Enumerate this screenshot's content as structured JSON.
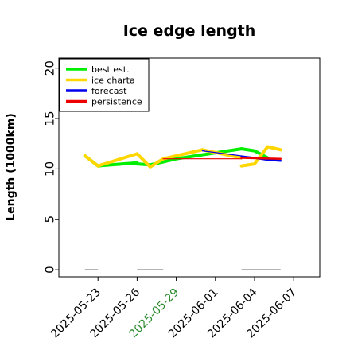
{
  "chart_data": {
    "type": "line",
    "title": "Ice edge length",
    "xlabel": "",
    "ylabel": "Length (1000km)",
    "ylim": [
      -0.7,
      21
    ],
    "xlim": [
      "2025-05-20",
      "2025-06-09"
    ],
    "yticks": [
      "0",
      "5",
      "10",
      "15",
      "20"
    ],
    "xticks": [
      {
        "date": "2025-05-23",
        "label": "2025-05-23",
        "color": "#000000"
      },
      {
        "date": "2025-05-26",
        "label": "2025-05-26",
        "color": "#000000"
      },
      {
        "date": "2025-05-29",
        "label": "2025-05-29",
        "color": "#2e8b2e"
      },
      {
        "date": "2025-06-01",
        "label": "2025-06-01",
        "color": "#000000"
      },
      {
        "date": "2025-06-04",
        "label": "2025-06-04",
        "color": "#000000"
      },
      {
        "date": "2025-06-07",
        "label": "2025-06-07",
        "color": "#000000"
      }
    ],
    "legend_position": "top-left",
    "series": [
      {
        "name": "best est.",
        "color": "#00ee00",
        "segments": [
          {
            "x": [
              "2025-05-22",
              "2025-05-23"
            ],
            "y": [
              11.3,
              10.3
            ]
          },
          {
            "x": [
              "2025-05-23",
              "2025-05-26"
            ],
            "y": [
              10.3,
              10.6
            ]
          },
          {
            "x": [
              "2025-05-26",
              "2025-05-27",
              "2025-05-28",
              "2025-05-29"
            ],
            "y": [
              10.5,
              10.4,
              10.7,
              11.0
            ]
          },
          {
            "x": [
              "2025-05-29",
              "2025-06-03"
            ],
            "y": [
              11.0,
              12.0
            ]
          },
          {
            "x": [
              "2025-06-03",
              "2025-06-04",
              "2025-06-05"
            ],
            "y": [
              12.0,
              11.8,
              11.1
            ]
          }
        ]
      },
      {
        "name": "ice charta",
        "color": "#ffd700",
        "segments": [
          {
            "x": [
              "2025-05-22",
              "2025-05-23"
            ],
            "y": [
              11.3,
              10.3
            ]
          },
          {
            "x": [
              "2025-05-23",
              "2025-05-26"
            ],
            "y": [
              10.3,
              11.5
            ]
          },
          {
            "x": [
              "2025-05-26",
              "2025-05-27",
              "2025-05-28"
            ],
            "y": [
              11.5,
              10.2,
              11.0
            ]
          },
          {
            "x": [
              "2025-05-28",
              "2025-05-31"
            ],
            "y": [
              11.0,
              11.9
            ]
          },
          {
            "x": [
              "2025-05-31",
              "2025-06-03"
            ],
            "y": [
              11.9,
              11.1
            ]
          },
          {
            "x": [
              "2025-06-03",
              "2025-06-04",
              "2025-06-05",
              "2025-06-06"
            ],
            "y": [
              10.3,
              10.5,
              12.2,
              11.9
            ]
          }
        ]
      },
      {
        "name": "forecast",
        "color": "#0000ee",
        "segments": [
          {
            "x": [
              "2025-05-31",
              "2025-06-06"
            ],
            "y": [
              11.8,
              10.8
            ]
          },
          {
            "x": [
              "2025-06-03",
              "2025-06-04",
              "2025-06-05",
              "2025-06-06"
            ],
            "y": [
              11.2,
              11.1,
              10.9,
              10.8
            ]
          }
        ]
      },
      {
        "name": "persistence",
        "color": "#ee0000",
        "segments": [
          {
            "x": [
              "2025-05-28",
              "2025-06-03"
            ],
            "y": [
              11.0,
              11.0
            ]
          },
          {
            "x": [
              "2025-06-03",
              "2025-06-06"
            ],
            "y": [
              11.1,
              11.0
            ]
          }
        ]
      }
    ],
    "gap_markers": {
      "color": "#888888",
      "y": 0,
      "ranges": [
        [
          "2025-05-22",
          "2025-05-23"
        ],
        [
          "2025-05-26",
          "2025-05-28"
        ],
        [
          "2025-06-03",
          "2025-06-06"
        ]
      ]
    }
  }
}
